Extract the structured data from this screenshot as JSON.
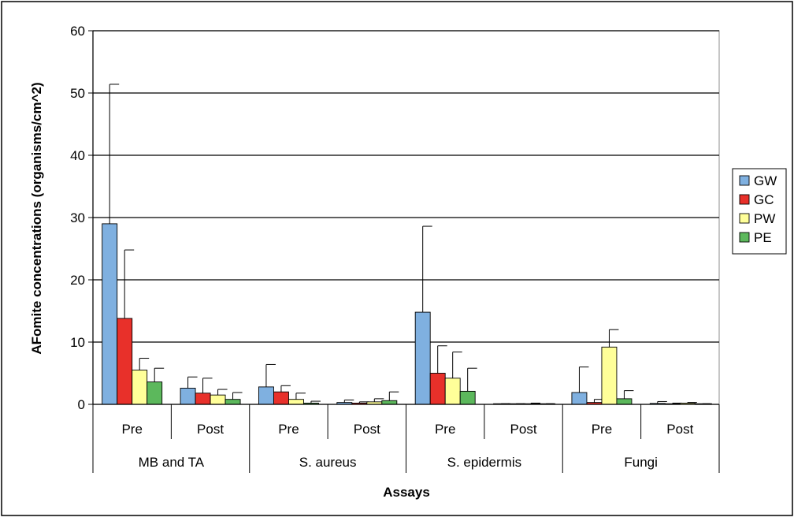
{
  "chart_data": {
    "type": "bar",
    "title": "",
    "xlabel": "Assays",
    "ylabel": "AFomite concentrations (organisms/cm^2)",
    "ylim": [
      0,
      60
    ],
    "yticks": [
      0,
      10,
      20,
      30,
      40,
      50,
      60
    ],
    "grid": true,
    "legend_position": "right",
    "categories": [
      {
        "sub": "Pre",
        "group": "MB and TA"
      },
      {
        "sub": "Post",
        "group": "MB and TA"
      },
      {
        "sub": "Pre",
        "group": "S. aureus"
      },
      {
        "sub": "Post",
        "group": "S. aureus"
      },
      {
        "sub": "Pre",
        "group": "S. epidermis"
      },
      {
        "sub": "Post",
        "group": "S. epidermis"
      },
      {
        "sub": "Pre",
        "group": "Fungi"
      },
      {
        "sub": "Post",
        "group": "Fungi"
      }
    ],
    "groups": [
      "MB and TA",
      "S. aureus",
      "S. epidermis",
      "Fungi"
    ],
    "series": [
      {
        "name": "GW",
        "color": "#7fb0e0",
        "values": [
          29.0,
          2.6,
          2.8,
          0.3,
          14.8,
          0.05,
          1.9,
          0.15
        ],
        "errors": [
          22.4,
          1.8,
          3.6,
          0.4,
          13.8,
          0.05,
          4.1,
          0.3
        ]
      },
      {
        "name": "GC",
        "color": "#e8302a",
        "values": [
          13.8,
          1.8,
          2.0,
          0.2,
          5.0,
          0.05,
          0.3,
          0.1
        ],
        "errors": [
          11.0,
          2.4,
          1.0,
          0.2,
          4.4,
          0.05,
          0.5,
          0.1
        ]
      },
      {
        "name": "PW",
        "color": "#ffff99",
        "values": [
          5.5,
          1.5,
          0.8,
          0.4,
          4.2,
          0.1,
          9.2,
          0.2
        ],
        "errors": [
          1.9,
          0.9,
          1.0,
          0.5,
          4.2,
          0.1,
          2.8,
          0.1
        ]
      },
      {
        "name": "PE",
        "color": "#5cb85c",
        "values": [
          3.6,
          0.8,
          0.2,
          0.6,
          2.1,
          0.05,
          0.9,
          0.05
        ],
        "errors": [
          2.2,
          1.1,
          0.3,
          1.4,
          3.7,
          0.05,
          1.3,
          0.05
        ]
      }
    ]
  }
}
